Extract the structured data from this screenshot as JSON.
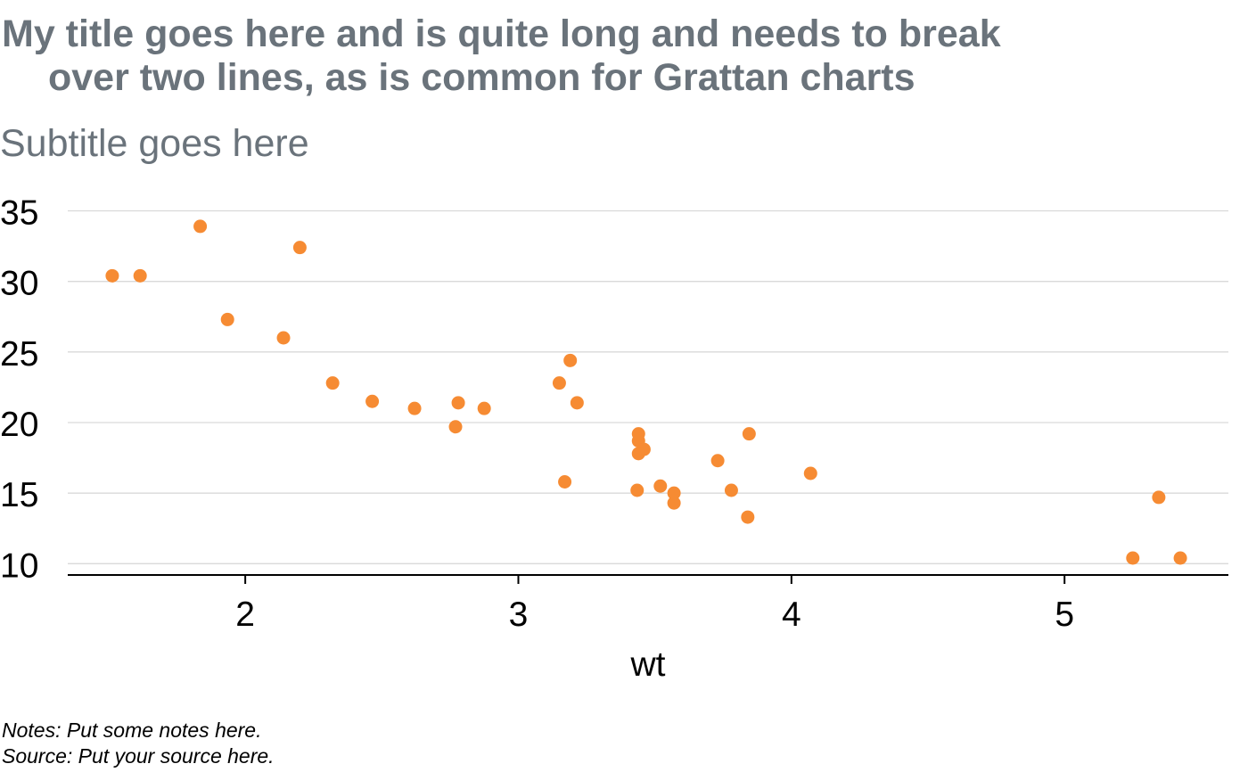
{
  "chart_data": {
    "type": "scatter",
    "title_lines": [
      "My title goes here and is quite long and needs to break",
      "over two lines, as is common for Grattan charts"
    ],
    "subtitle": "Subtitle goes here",
    "xlabel": "wt",
    "ylabel": "",
    "xlim": [
      1.35,
      5.6
    ],
    "ylim": [
      9.2,
      36.8
    ],
    "xticks": [
      2,
      3,
      4,
      5
    ],
    "yticks": [
      10,
      15,
      20,
      25,
      30,
      35
    ],
    "grid": {
      "horizontal": true,
      "vertical": false
    },
    "point_color": "#f68b33",
    "gridline_color": "#d9d9d9",
    "axis_color": "#000000",
    "points": [
      {
        "x": 2.62,
        "y": 21.0
      },
      {
        "x": 2.875,
        "y": 21.0
      },
      {
        "x": 2.32,
        "y": 22.8
      },
      {
        "x": 3.215,
        "y": 21.4
      },
      {
        "x": 3.44,
        "y": 18.7
      },
      {
        "x": 3.46,
        "y": 18.1
      },
      {
        "x": 3.57,
        "y": 14.3
      },
      {
        "x": 3.19,
        "y": 24.4
      },
      {
        "x": 3.15,
        "y": 22.8
      },
      {
        "x": 3.44,
        "y": 19.2
      },
      {
        "x": 3.44,
        "y": 17.8
      },
      {
        "x": 4.07,
        "y": 16.4
      },
      {
        "x": 3.73,
        "y": 17.3
      },
      {
        "x": 3.78,
        "y": 15.2
      },
      {
        "x": 5.25,
        "y": 10.4
      },
      {
        "x": 5.424,
        "y": 10.4
      },
      {
        "x": 5.345,
        "y": 14.7
      },
      {
        "x": 2.2,
        "y": 32.4
      },
      {
        "x": 1.615,
        "y": 30.4
      },
      {
        "x": 1.835,
        "y": 33.9
      },
      {
        "x": 2.465,
        "y": 21.5
      },
      {
        "x": 3.52,
        "y": 15.5
      },
      {
        "x": 3.435,
        "y": 15.2
      },
      {
        "x": 3.84,
        "y": 13.3
      },
      {
        "x": 3.845,
        "y": 19.2
      },
      {
        "x": 1.935,
        "y": 27.3
      },
      {
        "x": 2.14,
        "y": 26.0
      },
      {
        "x": 1.513,
        "y": 30.4
      },
      {
        "x": 3.17,
        "y": 15.8
      },
      {
        "x": 2.77,
        "y": 19.7
      },
      {
        "x": 3.57,
        "y": 15.0
      },
      {
        "x": 2.78,
        "y": 21.4
      }
    ]
  },
  "caption": {
    "notes": "Notes: Put some notes here.",
    "source": "Source: Put your source here."
  }
}
